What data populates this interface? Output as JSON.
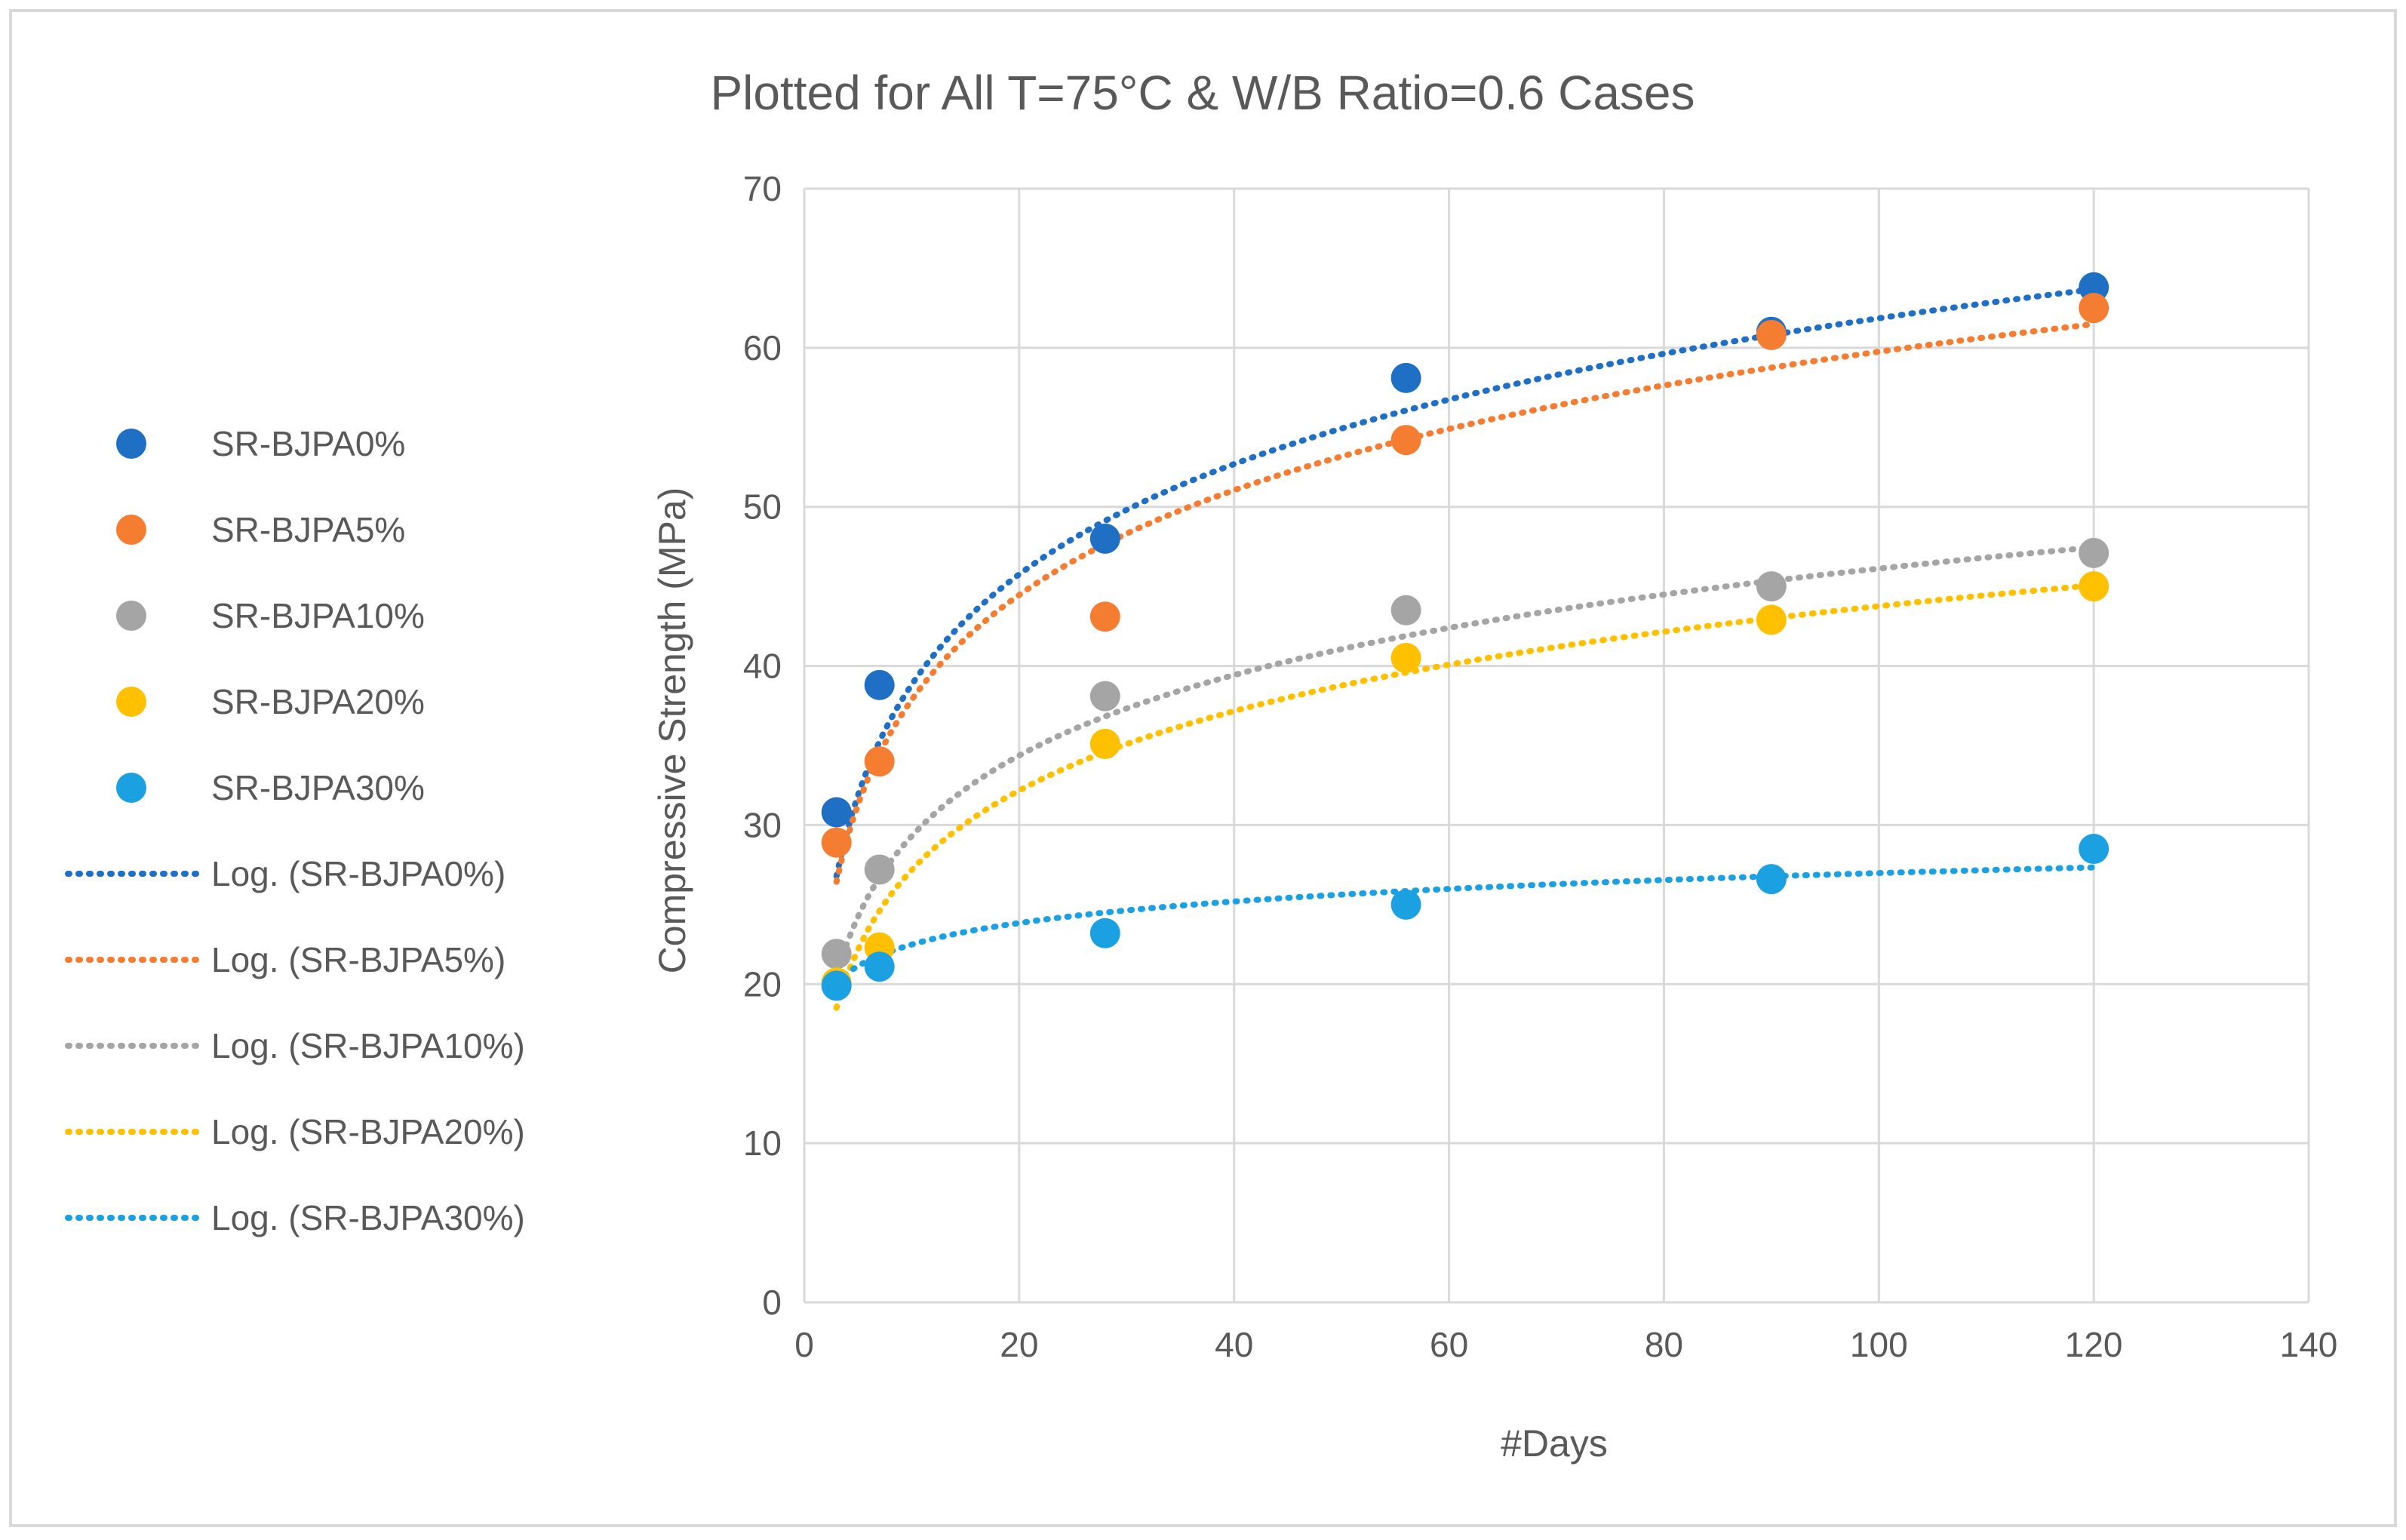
{
  "chart_data": {
    "type": "scatter",
    "title": "Plotted for All T=75°C & W/B Ratio=0.6 Cases",
    "xlabel": "#Days",
    "ylabel": "Compressive Strength (MPa)",
    "xlim": [
      0,
      140
    ],
    "ylim": [
      0,
      70
    ],
    "xticks": [
      "0",
      "20",
      "40",
      "60",
      "80",
      "100",
      "120",
      "140"
    ],
    "yticks": [
      "0",
      "10",
      "20",
      "30",
      "40",
      "50",
      "60",
      "70"
    ],
    "grid": true,
    "legend_position": "left",
    "x": [
      3,
      7,
      28,
      56,
      90,
      120
    ],
    "series": [
      {
        "name": "SR-BJPA0%",
        "color": "#1F6FC5",
        "values": [
          30.8,
          38.8,
          48.0,
          58.1,
          61.0,
          63.8
        ],
        "trend_name": "Log. (SR-BJPA0%)",
        "trend_a": 10.0,
        "trend_b": 15.8
      },
      {
        "name": "SR-BJPA5%",
        "color": "#F47D32",
        "values": [
          28.9,
          34.0,
          43.1,
          54.2,
          60.8,
          62.5
        ],
        "trend_a": 9.5,
        "trend_b": 16.0,
        "trend_name": "Log. (SR-BJPA5%)"
      },
      {
        "name": "SR-BJPA10%",
        "color": "#A5A5A5",
        "values": [
          21.9,
          27.2,
          38.1,
          43.5,
          45.0,
          47.1
        ],
        "trend_a": 7.3,
        "trend_b": 12.5,
        "trend_name": "Log. (SR-BJPA10%)"
      },
      {
        "name": "SR-BJPA20%",
        "color": "#FFC000",
        "values": [
          20.1,
          22.3,
          35.1,
          40.5,
          42.9,
          45.0
        ],
        "trend_a": 7.2,
        "trend_b": 10.6,
        "trend_name": "Log. (SR-BJPA20%)"
      },
      {
        "name": "SR-BJPA30%",
        "color": "#1BA1E2",
        "values": [
          19.9,
          21.1,
          23.2,
          25.0,
          26.6,
          28.5
        ],
        "trend_a": 1.95,
        "trend_b": 18.0,
        "trend_name": "Log. (SR-BJPA30%)"
      }
    ]
  }
}
